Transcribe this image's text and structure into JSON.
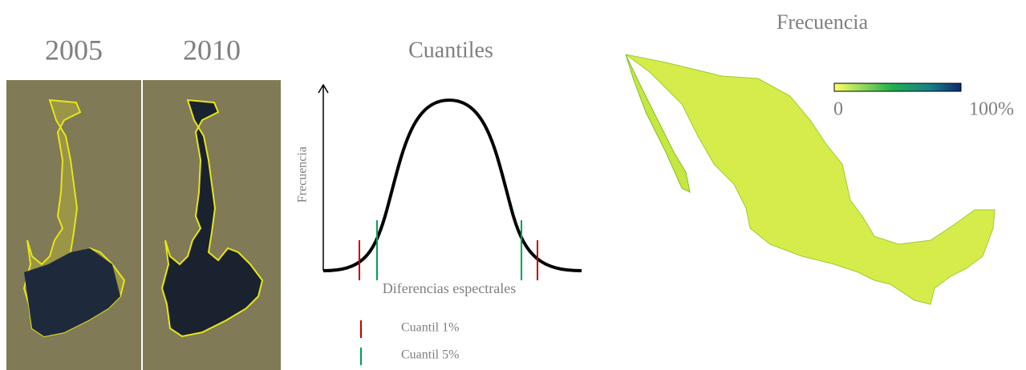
{
  "panels": {
    "years": [
      "2005",
      "2010"
    ],
    "quantiles": {
      "title": "Cuantiles",
      "y_label": "Frecuencia",
      "x_label": "Diferencias espectrales",
      "legend": [
        "Cuantil 1%",
        "Cuantil 5%"
      ]
    },
    "map": {
      "title": "Frecuencia",
      "scale_min": "0",
      "scale_max": "100%"
    }
  }
}
